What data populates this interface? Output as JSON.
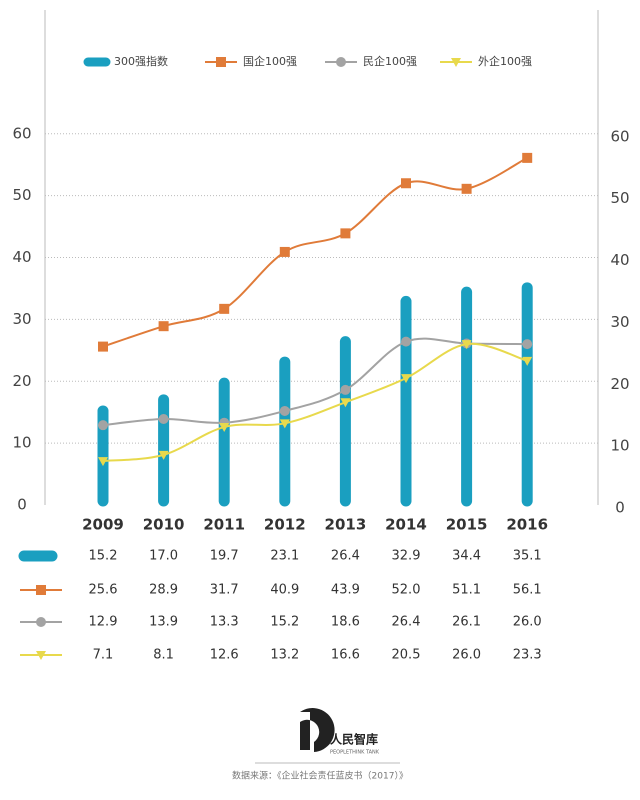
{
  "chart_data": {
    "type": "bar",
    "categories": [
      "2009",
      "2010",
      "2011",
      "2012",
      "2013",
      "2014",
      "2015",
      "2016"
    ],
    "series": [
      {
        "name": "300强指数",
        "type": "bar",
        "color": "#1a9fc0",
        "values": [
          15.2,
          17.0,
          19.7,
          23.1,
          26.4,
          32.9,
          34.4,
          35.1
        ],
        "value_labels": [
          "15.2",
          "17.0",
          "19.7",
          "23.1",
          "26.4",
          "32.9",
          "34.4",
          "35.1"
        ]
      },
      {
        "name": "国企100强",
        "type": "line",
        "marker": "square",
        "color": "#e07b39",
        "values": [
          25.6,
          28.9,
          31.7,
          40.9,
          43.9,
          52.0,
          51.1,
          56.1
        ],
        "value_labels": [
          "25.6",
          "28.9",
          "31.7",
          "40.9",
          "43.9",
          "52.0",
          "51.1",
          "56.1"
        ]
      },
      {
        "name": "民企100强",
        "type": "line",
        "marker": "circle",
        "color": "#a3a3a3",
        "values": [
          12.9,
          13.9,
          13.3,
          15.2,
          18.6,
          26.4,
          26.1,
          26.0
        ],
        "value_labels": [
          "12.9",
          "13.9",
          "13.3",
          "15.2",
          "18.6",
          "26.4",
          "26.1",
          "26.0"
        ]
      },
      {
        "name": "外企100强",
        "type": "line",
        "marker": "triangle",
        "color": "#e8d94c",
        "values": [
          7.1,
          8.1,
          12.6,
          13.2,
          16.6,
          20.5,
          26.0,
          23.3
        ],
        "value_labels": [
          "7.1",
          "8.1",
          "12.6",
          "13.2",
          "16.6",
          "20.5",
          "26.0",
          "23.3"
        ]
      }
    ],
    "ylim": [
      0,
      80
    ],
    "yticks": [
      0,
      10,
      20,
      30,
      40,
      50,
      60
    ],
    "y2lim": [
      0,
      80
    ],
    "y2ticks": [
      0,
      10,
      20,
      30,
      40,
      50,
      60
    ],
    "grid": true,
    "legend": "top"
  },
  "logo": {
    "name": "人民智库",
    "subtitle": "PEOPLETHINK TANK"
  },
  "source": "数据来源：《企业社会责任蓝皮书（2017）》"
}
